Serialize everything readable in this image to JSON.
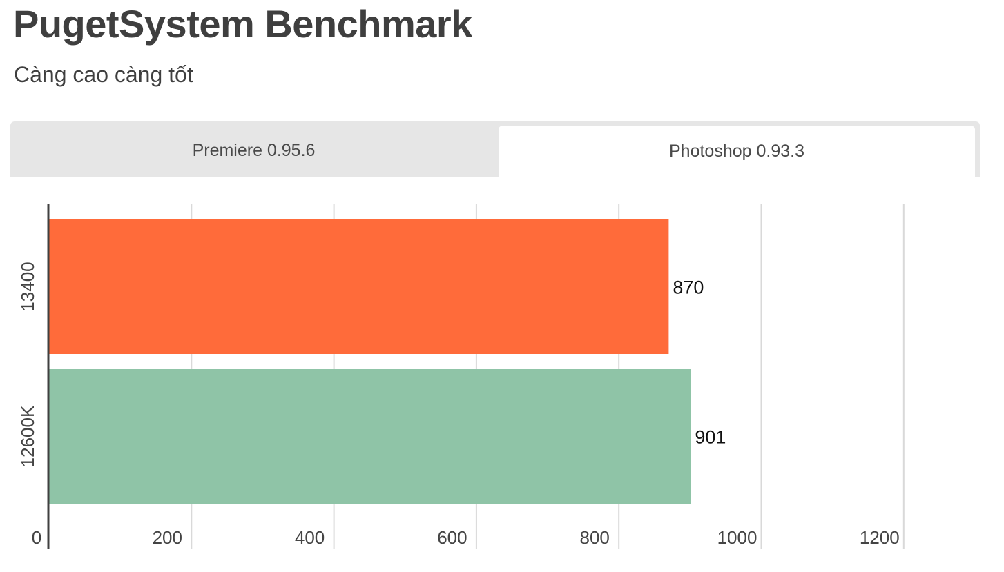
{
  "header": {
    "title": "PugetSystem Benchmark",
    "subtitle": "Càng cao càng tốt"
  },
  "tabs": [
    {
      "label": "Premiere 0.95.6",
      "active": false
    },
    {
      "label": "Photoshop 0.93.3",
      "active": true
    }
  ],
  "colors": {
    "series_13400": "#ff6b3a",
    "series_12600K": "#8fc4a7",
    "gridline": "#d9d9d9",
    "axis": "#404040"
  },
  "chart_data": {
    "type": "bar",
    "orientation": "horizontal",
    "categories": [
      "13400",
      "12600K"
    ],
    "values": [
      870,
      901
    ],
    "data_labels": [
      "870",
      "901"
    ],
    "xlim": [
      0,
      1300
    ],
    "x_ticks": [
      0,
      200,
      400,
      600,
      800,
      1000,
      1200
    ],
    "x_tick_labels": [
      "0",
      "200",
      "400",
      "600",
      "800",
      "1000",
      "1200"
    ],
    "grid": true,
    "legend": "none"
  }
}
